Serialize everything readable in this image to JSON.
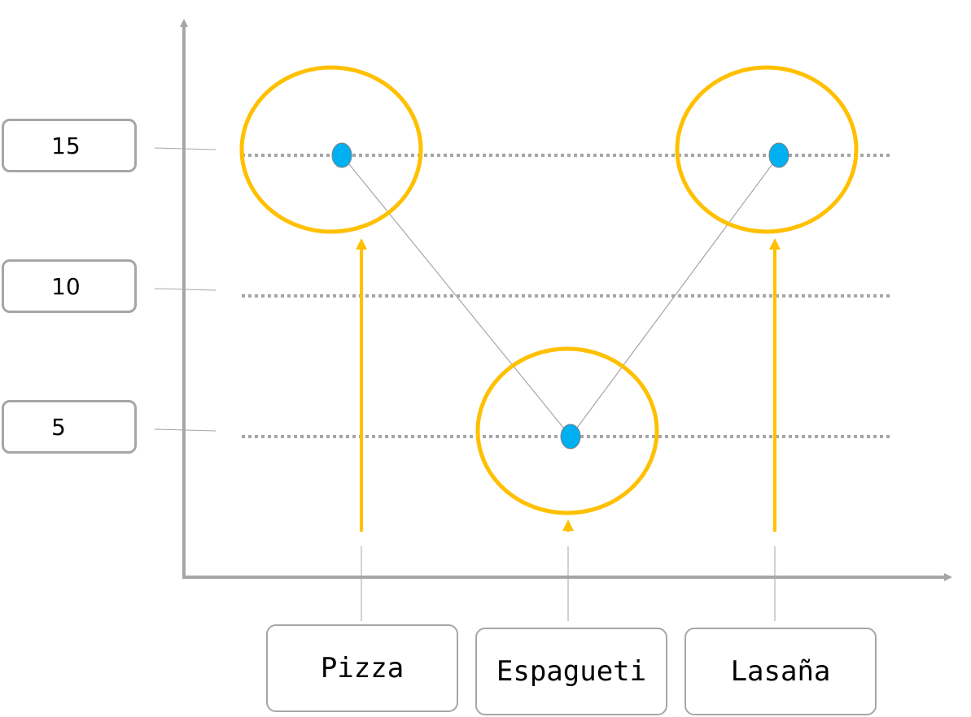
{
  "chart_data": {
    "type": "scatter",
    "categories": [
      "Pizza",
      "Espagueti",
      "Lasaña"
    ],
    "values": [
      15,
      5,
      15
    ],
    "y_ticks": [
      "15",
      "10",
      "5"
    ],
    "ylim": [
      0,
      19
    ],
    "grid": "dotted horizontal lines at 5, 10, 15",
    "colors": {
      "point": "#00b0f0",
      "highlight": "#ffc000",
      "axis": "#a6a6a6",
      "grid": "#a6a6a6",
      "connector": "#a6a6a6"
    }
  }
}
